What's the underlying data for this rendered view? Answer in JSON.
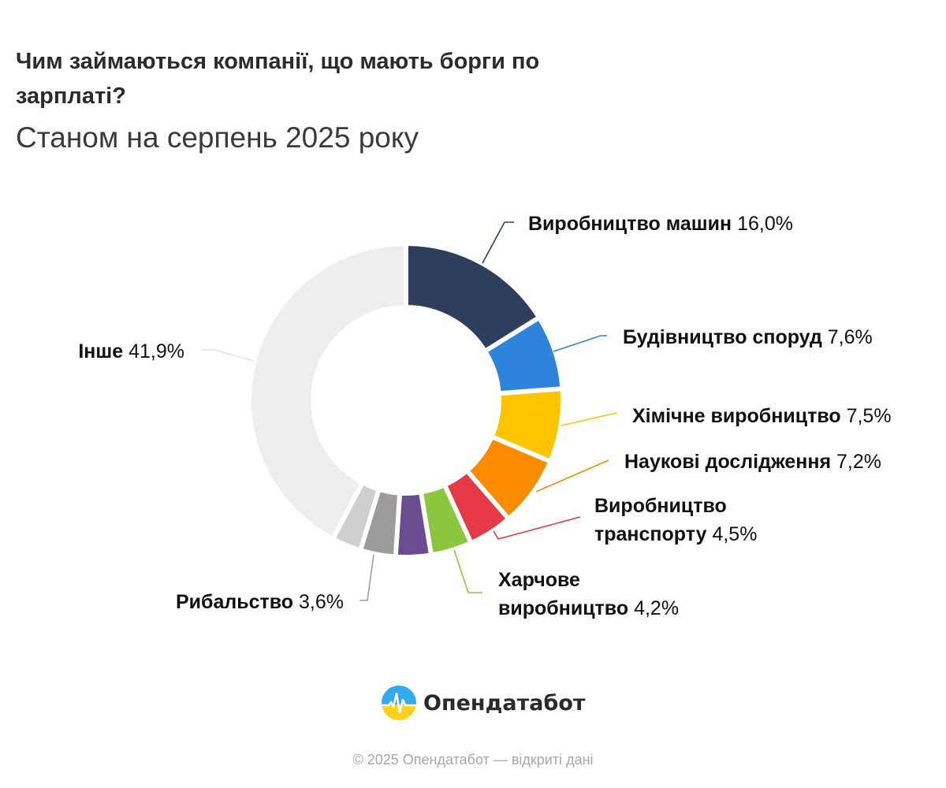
{
  "title": "Чим займаються компанії, що мають борги по зарплаті?",
  "subtitle": "Станом на серпень 2025 року",
  "chart_data": {
    "type": "pie",
    "donut": true,
    "slices": [
      {
        "label": "Виробництво машин",
        "value": "16,0%",
        "pct": 16.0,
        "color": "#2e3f5e"
      },
      {
        "label": "Будівництво споруд",
        "value": "7,6%",
        "pct": 7.6,
        "color": "#2e84db"
      },
      {
        "label": "Хімічне виробництво",
        "value": "7,5%",
        "pct": 7.5,
        "color": "#ffc400"
      },
      {
        "label": "Наукові дослідження",
        "value": "7,2%",
        "pct": 7.2,
        "color": "#fb8c00"
      },
      {
        "label": "Виробництво транспорту",
        "label_lines": [
          "Виробництво",
          "транспорту"
        ],
        "value": "4,5%",
        "pct": 4.5,
        "color": "#e63946"
      },
      {
        "label": "Харчове виробництво",
        "label_lines": [
          "Харчове",
          "виробництво"
        ],
        "value": "4,2%",
        "pct": 4.2,
        "color": "#8cc63f"
      },
      {
        "label": "",
        "value": "",
        "pct": 3.6,
        "color": "#6a4c93"
      },
      {
        "label": "Рибальство",
        "value": "3,6%",
        "pct": 3.6,
        "color": "#9b9b9b"
      },
      {
        "label": "",
        "value": "",
        "pct": 3.0,
        "color": "#cfcfcf"
      },
      {
        "label": "Інше",
        "value": "41,9%",
        "pct": 41.9,
        "color": "#eeeeee"
      }
    ]
  },
  "brand": {
    "name": "Опендатабот"
  },
  "footer": "© 2025 Опендатабот — відкриті дані"
}
